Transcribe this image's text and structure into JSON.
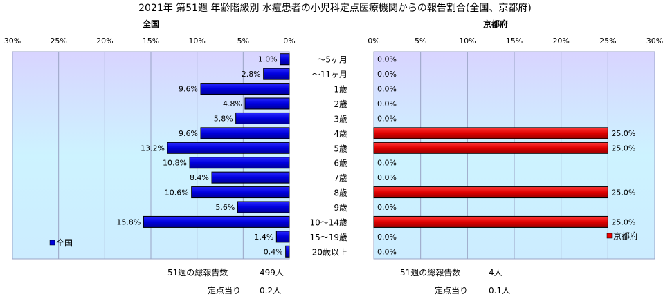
{
  "title": "2021年 第51週 年齢階級別 水痘患者の小児科定点医療機関からの報告割合(全国、京都府)",
  "chart_data": [
    {
      "type": "bar",
      "orientation": "horizontal",
      "direction": "right-to-left",
      "title": "全国",
      "categories": [
        "～5ヶ月",
        "～11ヶ月",
        "1歳",
        "2歳",
        "3歳",
        "4歳",
        "5歳",
        "6歳",
        "7歳",
        "8歳",
        "9歳",
        "10～14歳",
        "15～19歳",
        "20歳以上"
      ],
      "series": [
        {
          "name": "全国",
          "values": [
            1.0,
            2.8,
            9.6,
            4.8,
            5.8,
            9.6,
            13.2,
            10.8,
            8.4,
            10.6,
            5.6,
            15.8,
            1.4,
            0.4
          ]
        }
      ],
      "data_labels": [
        "1.0%",
        "2.8%",
        "9.6%",
        "4.8%",
        "5.8%",
        "9.6%",
        "13.2%",
        "10.8%",
        "8.4%",
        "10.6%",
        "5.6%",
        "15.8%",
        "1.4%",
        "0.4%"
      ],
      "ticks": [
        "30%",
        "25%",
        "20%",
        "15%",
        "10%",
        "5%",
        "0%"
      ],
      "xlim": [
        0,
        30
      ],
      "color": "#0000dd",
      "grid": true,
      "legend": "bottom-left"
    },
    {
      "type": "bar",
      "orientation": "horizontal",
      "direction": "left-to-right",
      "title": "京都府",
      "categories": [
        "～5ヶ月",
        "～11ヶ月",
        "1歳",
        "2歳",
        "3歳",
        "4歳",
        "5歳",
        "6歳",
        "7歳",
        "8歳",
        "9歳",
        "10～14歳",
        "15～19歳",
        "20歳以上"
      ],
      "series": [
        {
          "name": "京都府",
          "values": [
            0.0,
            0.0,
            0.0,
            0.0,
            0.0,
            25.0,
            25.0,
            0.0,
            0.0,
            25.0,
            0.0,
            25.0,
            0.0,
            0.0
          ]
        }
      ],
      "data_labels": [
        "0.0%",
        "0.0%",
        "0.0%",
        "0.0%",
        "0.0%",
        "25.0%",
        "25.0%",
        "0.0%",
        "0.0%",
        "25.0%",
        "0.0%",
        "25.0%",
        "0.0%",
        "0.0%"
      ],
      "ticks": [
        "0%",
        "5%",
        "10%",
        "15%",
        "20%",
        "25%",
        "30%"
      ],
      "xlim": [
        0,
        30
      ],
      "color": "#ee0000",
      "grid": true,
      "legend": "bottom-right"
    }
  ],
  "stats": {
    "national": {
      "total_label": "51週の総報告数",
      "total_value": "499人",
      "per_label": "定点当り",
      "per_value": "0.2人"
    },
    "kyoto": {
      "total_label": "51週の総報告数",
      "total_value": "4人",
      "per_label": "定点当り",
      "per_value": "0.1人"
    }
  }
}
